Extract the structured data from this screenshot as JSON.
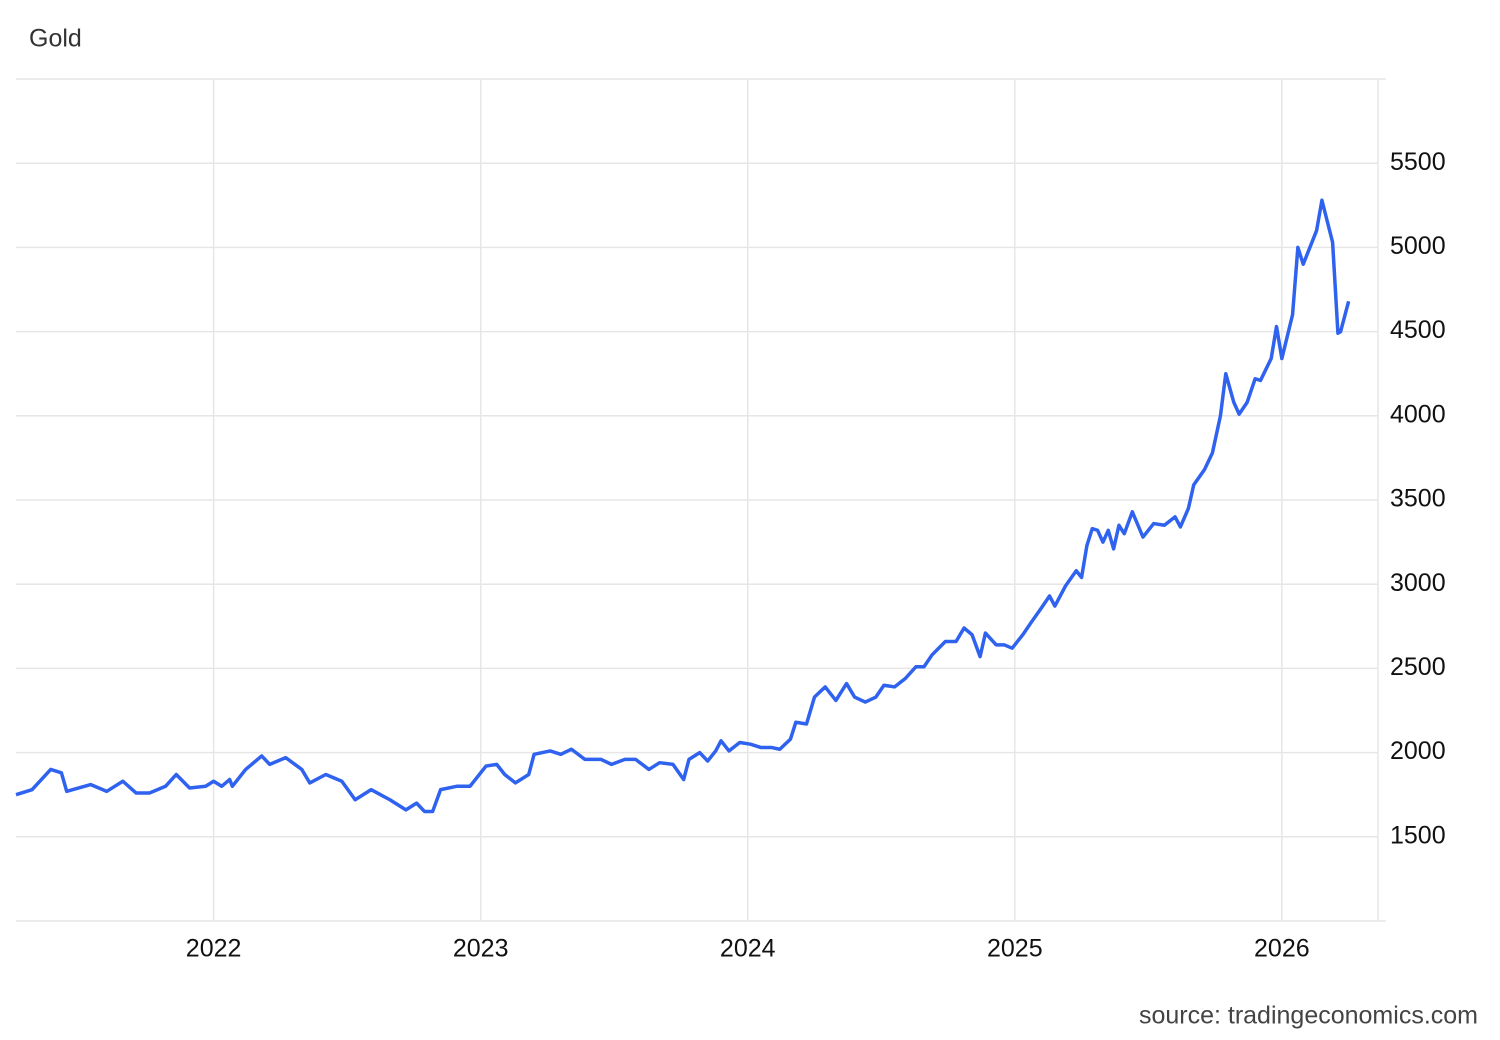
{
  "chart_data": {
    "type": "line",
    "title": "Gold",
    "source": "source: tradingeconomics.com",
    "color": "#2f62ee",
    "grid": true,
    "xlim": [
      2021.26,
      2026.36
    ],
    "xticks": [
      2022,
      2023,
      2024,
      2025,
      2026
    ],
    "ylim": [
      1000,
      6000
    ],
    "yticks": [
      1500,
      2000,
      2500,
      3000,
      3500,
      4000,
      4500,
      5000,
      5500
    ],
    "x": [
      2021.26,
      2021.32,
      2021.39,
      2021.43,
      2021.45,
      2021.54,
      2021.6,
      2021.66,
      2021.71,
      2021.76,
      2021.82,
      2021.86,
      2021.91,
      2021.97,
      2022.0,
      2022.03,
      2022.06,
      2022.07,
      2022.12,
      2022.18,
      2022.21,
      2022.27,
      2022.33,
      2022.36,
      2022.42,
      2022.48,
      2022.53,
      2022.59,
      2022.66,
      2022.72,
      2022.76,
      2022.79,
      2022.82,
      2022.85,
      2022.91,
      2022.96,
      2023.02,
      2023.06,
      2023.09,
      2023.13,
      2023.18,
      2023.2,
      2023.26,
      2023.3,
      2023.34,
      2023.39,
      2023.45,
      2023.49,
      2023.54,
      2023.58,
      2023.63,
      2023.67,
      2023.72,
      2023.76,
      2023.78,
      2023.82,
      2023.85,
      2023.88,
      2023.9,
      2023.93,
      2023.97,
      2024.01,
      2024.05,
      2024.09,
      2024.12,
      2024.16,
      2024.18,
      2024.22,
      2024.25,
      2024.29,
      2024.33,
      2024.37,
      2024.4,
      2024.44,
      2024.48,
      2024.51,
      2024.55,
      2024.59,
      2024.63,
      2024.66,
      2024.69,
      2024.74,
      2024.78,
      2024.81,
      2024.84,
      2024.87,
      2024.89,
      2024.93,
      2024.96,
      2024.99,
      2025.03,
      2025.06,
      2025.1,
      2025.13,
      2025.15,
      2025.19,
      2025.23,
      2025.25,
      2025.27,
      2025.29,
      2025.31,
      2025.33,
      2025.35,
      2025.37,
      2025.39,
      2025.41,
      2025.44,
      2025.48,
      2025.52,
      2025.56,
      2025.6,
      2025.62,
      2025.65,
      2025.67,
      2025.71,
      2025.74,
      2025.77,
      2025.79,
      2025.82,
      2025.84,
      2025.87,
      2025.9,
      2025.92,
      2025.96,
      2025.98,
      2026.0,
      2026.04,
      2026.06,
      2026.08,
      2026.13,
      2026.15,
      2026.19,
      2026.21,
      2026.22,
      2026.25
    ],
    "values": [
      1750,
      1780,
      1900,
      1880,
      1770,
      1810,
      1770,
      1830,
      1760,
      1760,
      1800,
      1870,
      1790,
      1800,
      1830,
      1800,
      1840,
      1800,
      1900,
      1980,
      1930,
      1970,
      1900,
      1820,
      1870,
      1830,
      1720,
      1780,
      1720,
      1660,
      1700,
      1650,
      1650,
      1780,
      1800,
      1800,
      1920,
      1930,
      1870,
      1820,
      1870,
      1990,
      2010,
      1990,
      2020,
      1960,
      1960,
      1930,
      1960,
      1960,
      1900,
      1940,
      1930,
      1840,
      1960,
      2000,
      1950,
      2010,
      2070,
      2010,
      2060,
      2050,
      2030,
      2030,
      2020,
      2080,
      2180,
      2170,
      2330,
      2390,
      2310,
      2410,
      2330,
      2300,
      2330,
      2400,
      2390,
      2440,
      2510,
      2510,
      2580,
      2660,
      2660,
      2740,
      2700,
      2570,
      2710,
      2640,
      2640,
      2620,
      2700,
      2770,
      2860,
      2930,
      2870,
      2990,
      3080,
      3040,
      3230,
      3330,
      3320,
      3250,
      3320,
      3210,
      3350,
      3300,
      3430,
      3280,
      3360,
      3350,
      3400,
      3340,
      3450,
      3590,
      3680,
      3780,
      4000,
      4250,
      4080,
      4010,
      4080,
      4220,
      4210,
      4340,
      4530,
      4340,
      4600,
      5000,
      4900,
      5100,
      5280,
      5030,
      4490,
      4500,
      4680
    ]
  }
}
